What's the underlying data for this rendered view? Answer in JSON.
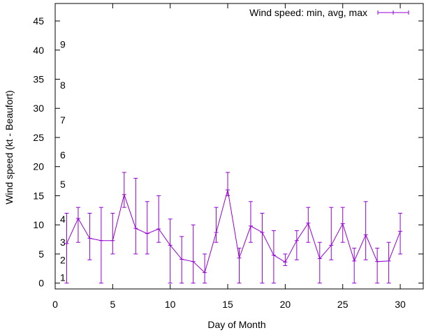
{
  "chart_data": {
    "type": "line",
    "xlabel": "Day of Month",
    "ylabel": "Wind speed (kt - Beaufort)",
    "xlim": [
      0,
      32
    ],
    "ylim": [
      -1,
      48
    ],
    "xticks": [
      0,
      5,
      10,
      15,
      20,
      25,
      30
    ],
    "yticks": [
      0,
      5,
      10,
      15,
      20,
      25,
      30,
      35,
      40,
      45
    ],
    "grid": false,
    "legend_position": "top-right",
    "series_color": "#9400d3",
    "beaufort_labels": [
      {
        "label": "1",
        "y": 1
      },
      {
        "label": "2",
        "y": 4
      },
      {
        "label": "3",
        "y": 7
      },
      {
        "label": "4",
        "y": 11
      },
      {
        "label": "5",
        "y": 17
      },
      {
        "label": "6",
        "y": 22
      },
      {
        "label": "7",
        "y": 28
      },
      {
        "label": "8",
        "y": 34
      },
      {
        "label": "9",
        "y": 41
      }
    ],
    "series": [
      {
        "name": "Wind speed: min, avg, max",
        "x": [
          1,
          2,
          3,
          4,
          5,
          6,
          7,
          8,
          9,
          10,
          11,
          12,
          13,
          14,
          15,
          16,
          17,
          18,
          19,
          20,
          21,
          22,
          23,
          24,
          25,
          26,
          27,
          28,
          29,
          30
        ],
        "avg": [
          6.8,
          11.1,
          7.7,
          7.3,
          7.3,
          15.2,
          9.4,
          8.5,
          9.3,
          6.5,
          4.1,
          3.7,
          1.8,
          8.7,
          16.0,
          4.3,
          9.8,
          8.7,
          4.8,
          3.6,
          7.3,
          10.3,
          4.2,
          6.5,
          10.2,
          3.8,
          8.3,
          3.7,
          3.8,
          8.9
        ],
        "min": [
          0,
          7,
          4,
          0,
          5,
          13,
          5,
          5,
          7,
          0,
          0,
          0,
          0,
          7,
          15,
          0,
          7,
          0,
          0,
          3,
          4,
          7,
          0,
          4,
          7,
          0,
          4,
          0,
          0,
          5
        ],
        "max": [
          12,
          13,
          12,
          13,
          12,
          19,
          18,
          14,
          15,
          11,
          8,
          10,
          5,
          13,
          19,
          6,
          14,
          12,
          9,
          5,
          9,
          13,
          7,
          13,
          13,
          6,
          14,
          6,
          7,
          12
        ]
      }
    ]
  }
}
